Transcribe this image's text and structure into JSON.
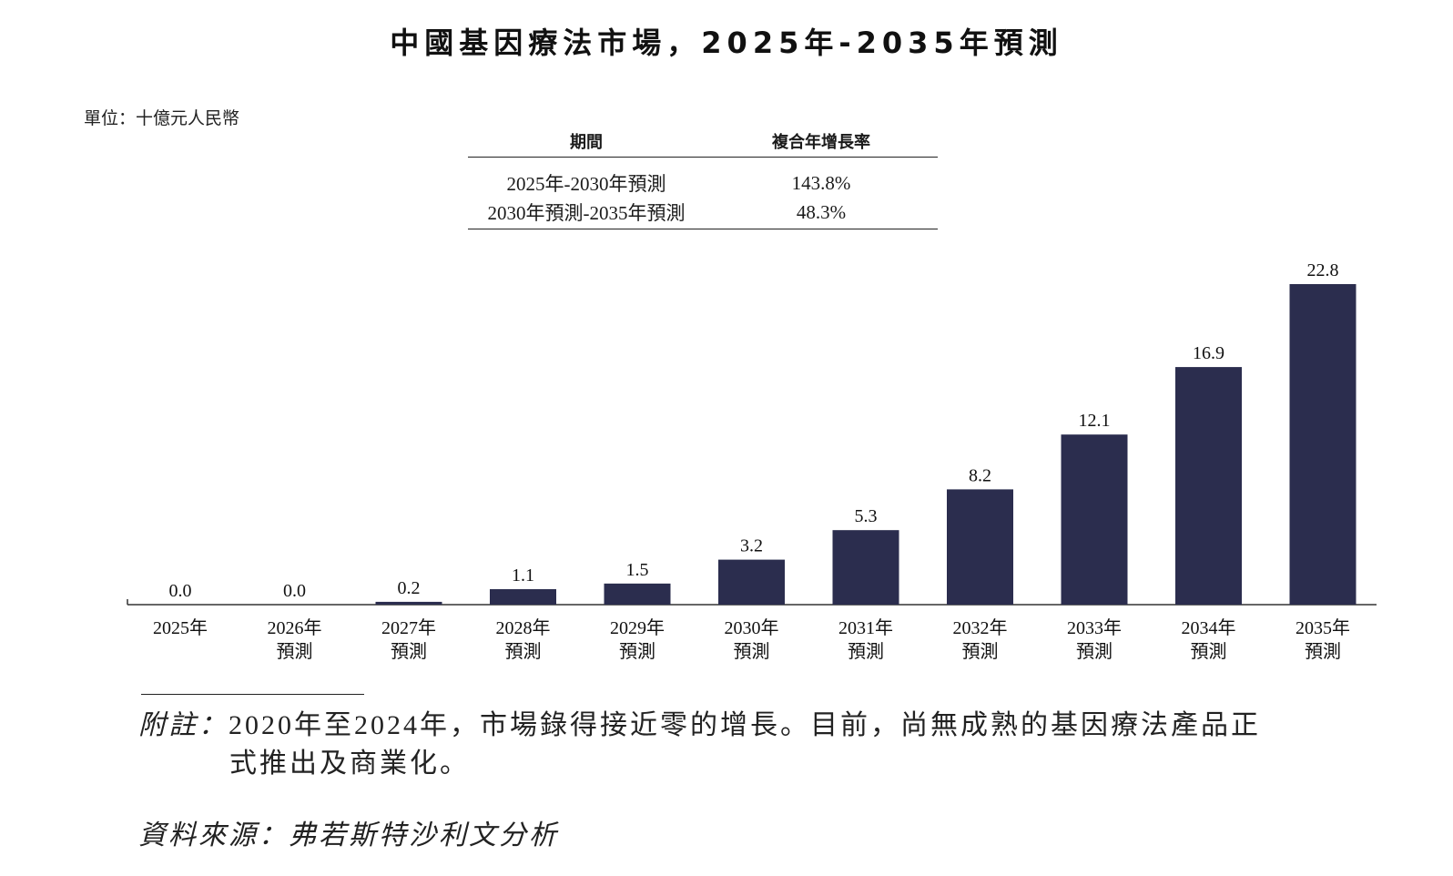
{
  "title": "中國基因療法市場，2025年-2035年預測",
  "unit": "單位：十億元人民幣",
  "cagr_table": {
    "headers": [
      "期間",
      "複合年增長率"
    ],
    "rows": [
      [
        "2025年-2030年預測",
        "143.8%"
      ],
      [
        "2030年預測-2035年預測",
        "48.3%"
      ]
    ]
  },
  "chart_data": {
    "type": "bar",
    "categories": [
      "2025年",
      "2026年預測",
      "2027年預測",
      "2028年預測",
      "2029年預測",
      "2030年預測",
      "2031年預測",
      "2032年預測",
      "2033年預測",
      "2034年預測",
      "2035年預測"
    ],
    "category_lines": [
      [
        "2025年"
      ],
      [
        "2026年",
        "預測"
      ],
      [
        "2027年",
        "預測"
      ],
      [
        "2028年",
        "預測"
      ],
      [
        "2029年",
        "預測"
      ],
      [
        "2030年",
        "預測"
      ],
      [
        "2031年",
        "預測"
      ],
      [
        "2032年",
        "預測"
      ],
      [
        "2033年",
        "預測"
      ],
      [
        "2034年",
        "預測"
      ],
      [
        "2035年",
        "預測"
      ]
    ],
    "values": [
      0.0,
      0.0,
      0.2,
      1.1,
      1.5,
      3.2,
      5.3,
      8.2,
      12.1,
      16.9,
      22.8
    ],
    "labels": [
      "0.0",
      "0.0",
      "0.2",
      "1.1",
      "1.5",
      "3.2",
      "5.3",
      "8.2",
      "12.1",
      "16.9",
      "22.8"
    ],
    "bar_color": "#2b2d4e",
    "grid": false,
    "ylim": [
      0,
      22.8
    ]
  },
  "note": {
    "label": "附註：",
    "line1": "2020年至2024年，市場錄得接近零的增長。目前，尚無成熟的基因療法產品正",
    "line2": "式推出及商業化。"
  },
  "source": "資料來源：弗若斯特沙利文分析"
}
